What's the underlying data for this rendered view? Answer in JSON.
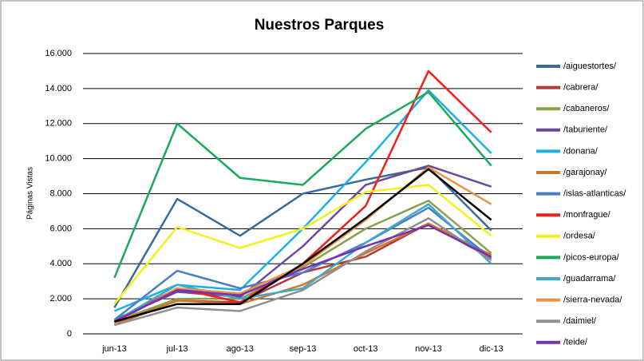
{
  "chart_data": {
    "type": "line",
    "title": "Nuestros Parques",
    "y_label": "Páginas Vistas",
    "categories": [
      "jun-13",
      "jul-13",
      "ago-13",
      "sep-13",
      "oct-13",
      "nov-13",
      "dic-13"
    ],
    "ylim": [
      0,
      16000
    ],
    "yticks": [
      0,
      {
        "value": 2000,
        "label": "2.000"
      },
      {
        "value": 4000,
        "label": "4.000"
      },
      {
        "value": 6000,
        "label": "6.000"
      },
      {
        "value": 8000,
        "label": "8.000"
      },
      {
        "value": 10000,
        "label": "10.000"
      },
      {
        "value": 12000,
        "label": "12.000"
      },
      {
        "value": 14000,
        "label": "14.000"
      },
      {
        "value": 16000,
        "label": "16.000"
      }
    ],
    "grid": true,
    "series": [
      {
        "name": "/aiguestortes/",
        "color": "#3a6b9e",
        "values": [
          1500,
          7700,
          5600,
          8000,
          8800,
          9500,
          5900
        ]
      },
      {
        "name": "/cabrera/",
        "color": "#b03a3a",
        "values": [
          600,
          1900,
          1800,
          3500,
          4400,
          6300,
          4300
        ]
      },
      {
        "name": "/cabaneros/",
        "color": "#8aa04a",
        "values": [
          700,
          2000,
          2000,
          3800,
          6000,
          7600,
          4600
        ]
      },
      {
        "name": "/taburiente/",
        "color": "#6a4a9a",
        "values": [
          800,
          2400,
          2100,
          5000,
          8500,
          9600,
          8400
        ]
      },
      {
        "name": "/donana/",
        "color": "#1ab0e8",
        "values": [
          1300,
          2800,
          2500,
          6000,
          9800,
          13900,
          10300
        ]
      },
      {
        "name": "/garajonay/",
        "color": "#d0782a",
        "values": [
          500,
          1900,
          1700,
          2800,
          4600,
          6300,
          4500
        ]
      },
      {
        "name": "/islas-atlanticas/",
        "color": "#4a7ec4",
        "values": [
          800,
          3600,
          2600,
          3500,
          5200,
          7200,
          4300
        ]
      },
      {
        "name": "/monfrague/",
        "color": "#f0201a",
        "values": [
          700,
          2600,
          1800,
          4000,
          7300,
          15000,
          11500
        ]
      },
      {
        "name": "/ordesa/",
        "color": "#f4f020",
        "values": [
          1700,
          6100,
          4900,
          6000,
          8100,
          8500,
          5600
        ]
      },
      {
        "name": "/picos-europa/",
        "color": "#1aaa5a",
        "values": [
          3200,
          12000,
          8900,
          8500,
          11700,
          13800,
          9600
        ]
      },
      {
        "name": "/guadarrama/",
        "color": "#40a8c8",
        "values": [
          700,
          2800,
          2000,
          2600,
          5200,
          7400,
          4000
        ]
      },
      {
        "name": "/sierra-nevada/",
        "color": "#f09040",
        "values": [
          600,
          2600,
          2300,
          3900,
          6500,
          9500,
          7400
        ]
      },
      {
        "name": "/daimiel/",
        "color": "#909090",
        "values": [
          500,
          1500,
          1300,
          2500,
          4700,
          6600,
          4200
        ]
      },
      {
        "name": "/teide/",
        "color": "#7a30b0",
        "values": [
          700,
          2500,
          2200,
          3700,
          5000,
          6200,
          4400
        ]
      },
      {
        "color": "#000000",
        "values": [
          700,
          1700,
          1700,
          4000,
          6600,
          9400,
          6500
        ]
      }
    ]
  }
}
